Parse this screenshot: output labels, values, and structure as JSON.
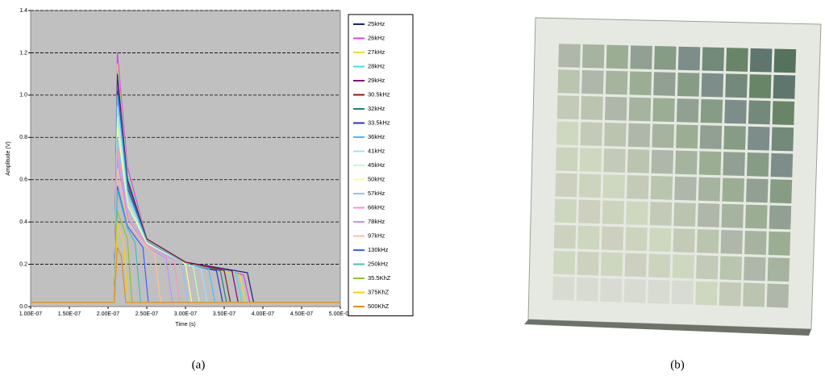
{
  "chart_data": {
    "type": "line",
    "xlabel": "Time (s)",
    "ylabel": "Amplitude (V)",
    "xlim": [
      1e-07,
      5e-07
    ],
    "xticks": [
      {
        "value": 1e-07,
        "label": "1.00E-07"
      },
      {
        "value": 1.5e-07,
        "label": "1.50E-07"
      },
      {
        "value": 2e-07,
        "label": "2.00E-07"
      },
      {
        "value": 2.5e-07,
        "label": "2.50E-07"
      },
      {
        "value": 3e-07,
        "label": "3.00E-07"
      },
      {
        "value": 3.5e-07,
        "label": "3.50E-07"
      },
      {
        "value": 4e-07,
        "label": "4.00E-07"
      },
      {
        "value": 4.5e-07,
        "label": "4.50E-07"
      },
      {
        "value": 5e-07,
        "label": "5.00E-07"
      }
    ],
    "ylim": [
      0,
      1.4
    ],
    "yticks": [
      {
        "value": 0,
        "label": "0.0"
      },
      0.2,
      0.4,
      0.6,
      0.8,
      {
        "value": 1,
        "label": "1.0"
      },
      1.2,
      1.4
    ],
    "grid": true,
    "background": "#c0c0c0",
    "legend": "right",
    "series": [
      {
        "name": "25kHz",
        "color": "#1f1f7a",
        "x": [
          1e-07,
          2.08e-07,
          2.12e-07,
          2.25e-07,
          2.5e-07,
          3e-07,
          3.8e-07,
          3.88e-07,
          5e-07
        ],
        "values": [
          0.02,
          0.02,
          1.08,
          0.6,
          0.32,
          0.21,
          0.16,
          0.02,
          0.02
        ]
      },
      {
        "name": "26kHz",
        "color": "#e040e0",
        "x": [
          1e-07,
          2.08e-07,
          2.12e-07,
          2.25e-07,
          2.5e-07,
          3e-07,
          3.75e-07,
          3.83e-07,
          5e-07
        ],
        "values": [
          0.02,
          0.02,
          1.2,
          0.66,
          0.32,
          0.21,
          0.15,
          0.02,
          0.02
        ]
      },
      {
        "name": "27kHz",
        "color": "#e8e030",
        "x": [
          1e-07,
          2.08e-07,
          2.12e-07,
          2.25e-07,
          2.5e-07,
          3e-07,
          3.7e-07,
          3.78e-07,
          5e-07
        ],
        "values": [
          0.02,
          0.02,
          1.15,
          0.63,
          0.32,
          0.21,
          0.15,
          0.02,
          0.02
        ]
      },
      {
        "name": "28kHz",
        "color": "#40e0e0",
        "x": [
          1e-07,
          2.08e-07,
          2.12e-07,
          2.25e-07,
          2.5e-07,
          3e-07,
          3.65e-07,
          3.73e-07,
          5e-07
        ],
        "values": [
          0.02,
          0.02,
          1.12,
          0.62,
          0.32,
          0.21,
          0.16,
          0.02,
          0.02
        ]
      },
      {
        "name": "29kHz",
        "color": "#800080",
        "x": [
          1e-07,
          2.08e-07,
          2.12e-07,
          2.25e-07,
          2.5e-07,
          3e-07,
          3.6e-07,
          3.68e-07,
          5e-07
        ],
        "values": [
          0.02,
          0.02,
          1.1,
          0.6,
          0.32,
          0.21,
          0.17,
          0.02,
          0.02
        ]
      },
      {
        "name": "30.5kHz",
        "color": "#802020",
        "x": [
          1e-07,
          2.08e-07,
          2.12e-07,
          2.25e-07,
          2.5e-07,
          3e-07,
          3.5e-07,
          3.58e-07,
          5e-07
        ],
        "values": [
          0.02,
          0.02,
          1.05,
          0.58,
          0.32,
          0.21,
          0.17,
          0.02,
          0.02
        ]
      },
      {
        "name": "32kHz",
        "color": "#208080",
        "x": [
          1e-07,
          2.08e-07,
          2.12e-07,
          2.25e-07,
          2.5e-07,
          3e-07,
          3.45e-07,
          3.53e-07,
          5e-07
        ],
        "values": [
          0.02,
          0.02,
          1.05,
          0.58,
          0.31,
          0.2,
          0.17,
          0.02,
          0.02
        ]
      },
      {
        "name": "33.5kHz",
        "color": "#3030c0",
        "x": [
          1e-07,
          2.08e-07,
          2.12e-07,
          2.25e-07,
          2.5e-07,
          3e-07,
          3.4e-07,
          3.48e-07,
          5e-07
        ],
        "values": [
          0.02,
          0.02,
          1.02,
          0.56,
          0.31,
          0.2,
          0.17,
          0.02,
          0.02
        ]
      },
      {
        "name": "36kHz",
        "color": "#40c0ff",
        "x": [
          1e-07,
          2.08e-07,
          2.12e-07,
          2.25e-07,
          2.5e-07,
          3e-07,
          3.3e-07,
          3.38e-07,
          5e-07
        ],
        "values": [
          0.02,
          0.02,
          1.0,
          0.55,
          0.31,
          0.2,
          0.18,
          0.02,
          0.02
        ]
      },
      {
        "name": "41kHz",
        "color": "#a0e0ff",
        "x": [
          1e-07,
          2.08e-07,
          2.12e-07,
          2.25e-07,
          2.5e-07,
          3e-07,
          3.2e-07,
          3.28e-07,
          5e-07
        ],
        "values": [
          0.02,
          0.02,
          0.95,
          0.52,
          0.3,
          0.2,
          0.18,
          0.02,
          0.02
        ]
      },
      {
        "name": "45kHz",
        "color": "#c0ffc0",
        "x": [
          1e-07,
          2.08e-07,
          2.12e-07,
          2.25e-07,
          2.5e-07,
          3e-07,
          3.1e-07,
          3.18e-07,
          5e-07
        ],
        "values": [
          0.02,
          0.02,
          0.9,
          0.5,
          0.3,
          0.2,
          0.19,
          0.02,
          0.02
        ]
      },
      {
        "name": "50kHz",
        "color": "#ffff90",
        "x": [
          1e-07,
          2.08e-07,
          2.12e-07,
          2.25e-07,
          2.5e-07,
          3e-07,
          3.08e-07,
          5e-07
        ],
        "values": [
          0.02,
          0.02,
          0.85,
          0.48,
          0.3,
          0.2,
          0.02,
          0.02
        ]
      },
      {
        "name": "57kHz",
        "color": "#90c0ff",
        "x": [
          1e-07,
          2.08e-07,
          2.12e-07,
          2.25e-07,
          2.5e-07,
          2.95e-07,
          3.03e-07,
          5e-07
        ],
        "values": [
          0.02,
          0.02,
          0.8,
          0.46,
          0.29,
          0.21,
          0.02,
          0.02
        ]
      },
      {
        "name": "66kHz",
        "color": "#ff90c0",
        "x": [
          1e-07,
          2.08e-07,
          2.12e-07,
          2.25e-07,
          2.5e-07,
          2.85e-07,
          2.93e-07,
          5e-07
        ],
        "values": [
          0.02,
          0.02,
          0.75,
          0.44,
          0.29,
          0.22,
          0.02,
          0.02
        ]
      },
      {
        "name": "78kHz",
        "color": "#c090ff",
        "x": [
          1e-07,
          2.08e-07,
          2.12e-07,
          2.25e-07,
          2.5e-07,
          2.75e-07,
          2.83e-07,
          5e-07
        ],
        "values": [
          0.02,
          0.02,
          0.7,
          0.42,
          0.28,
          0.23,
          0.02,
          0.02
        ]
      },
      {
        "name": "97kHz",
        "color": "#ffc090",
        "x": [
          1e-07,
          2.08e-07,
          2.12e-07,
          2.25e-07,
          2.5e-07,
          2.6e-07,
          2.68e-07,
          5e-07
        ],
        "values": [
          0.02,
          0.02,
          0.65,
          0.4,
          0.28,
          0.25,
          0.02,
          0.02
        ]
      },
      {
        "name": "130kHz",
        "color": "#4060ff",
        "x": [
          1e-07,
          2.08e-07,
          2.12e-07,
          2.25e-07,
          2.45e-07,
          2.52e-07,
          5e-07
        ],
        "values": [
          0.02,
          0.02,
          0.57,
          0.38,
          0.28,
          0.02,
          0.02
        ]
      },
      {
        "name": "250kHz",
        "color": "#40c0c0",
        "x": [
          1e-07,
          2.08e-07,
          2.12e-07,
          2.25e-07,
          2.35e-07,
          2.42e-07,
          5e-07
        ],
        "values": [
          0.02,
          0.02,
          0.55,
          0.37,
          0.3,
          0.02,
          0.02
        ]
      },
      {
        "name": "35.5KhZ",
        "color": "#90c030",
        "x": [
          1e-07,
          2.08e-07,
          2.12e-07,
          2.25e-07,
          2.31e-07,
          5e-07
        ],
        "values": [
          0.02,
          0.02,
          0.45,
          0.32,
          0.02,
          0.02
        ]
      },
      {
        "name": "375KhZ",
        "color": "#ffd000",
        "x": [
          1e-07,
          2.08e-07,
          2.12e-07,
          2.2e-07,
          2.26e-07,
          5e-07
        ],
        "values": [
          0.02,
          0.02,
          0.4,
          0.3,
          0.02,
          0.02
        ]
      },
      {
        "name": "500KhZ",
        "color": "#e09020",
        "x": [
          1e-07,
          2.08e-07,
          2.12e-07,
          2.17e-07,
          2.23e-07,
          5e-07
        ],
        "values": [
          0.02,
          0.02,
          0.28,
          0.24,
          0.02,
          0.02
        ]
      }
    ]
  },
  "captions": [
    "(a)",
    "(b)"
  ]
}
